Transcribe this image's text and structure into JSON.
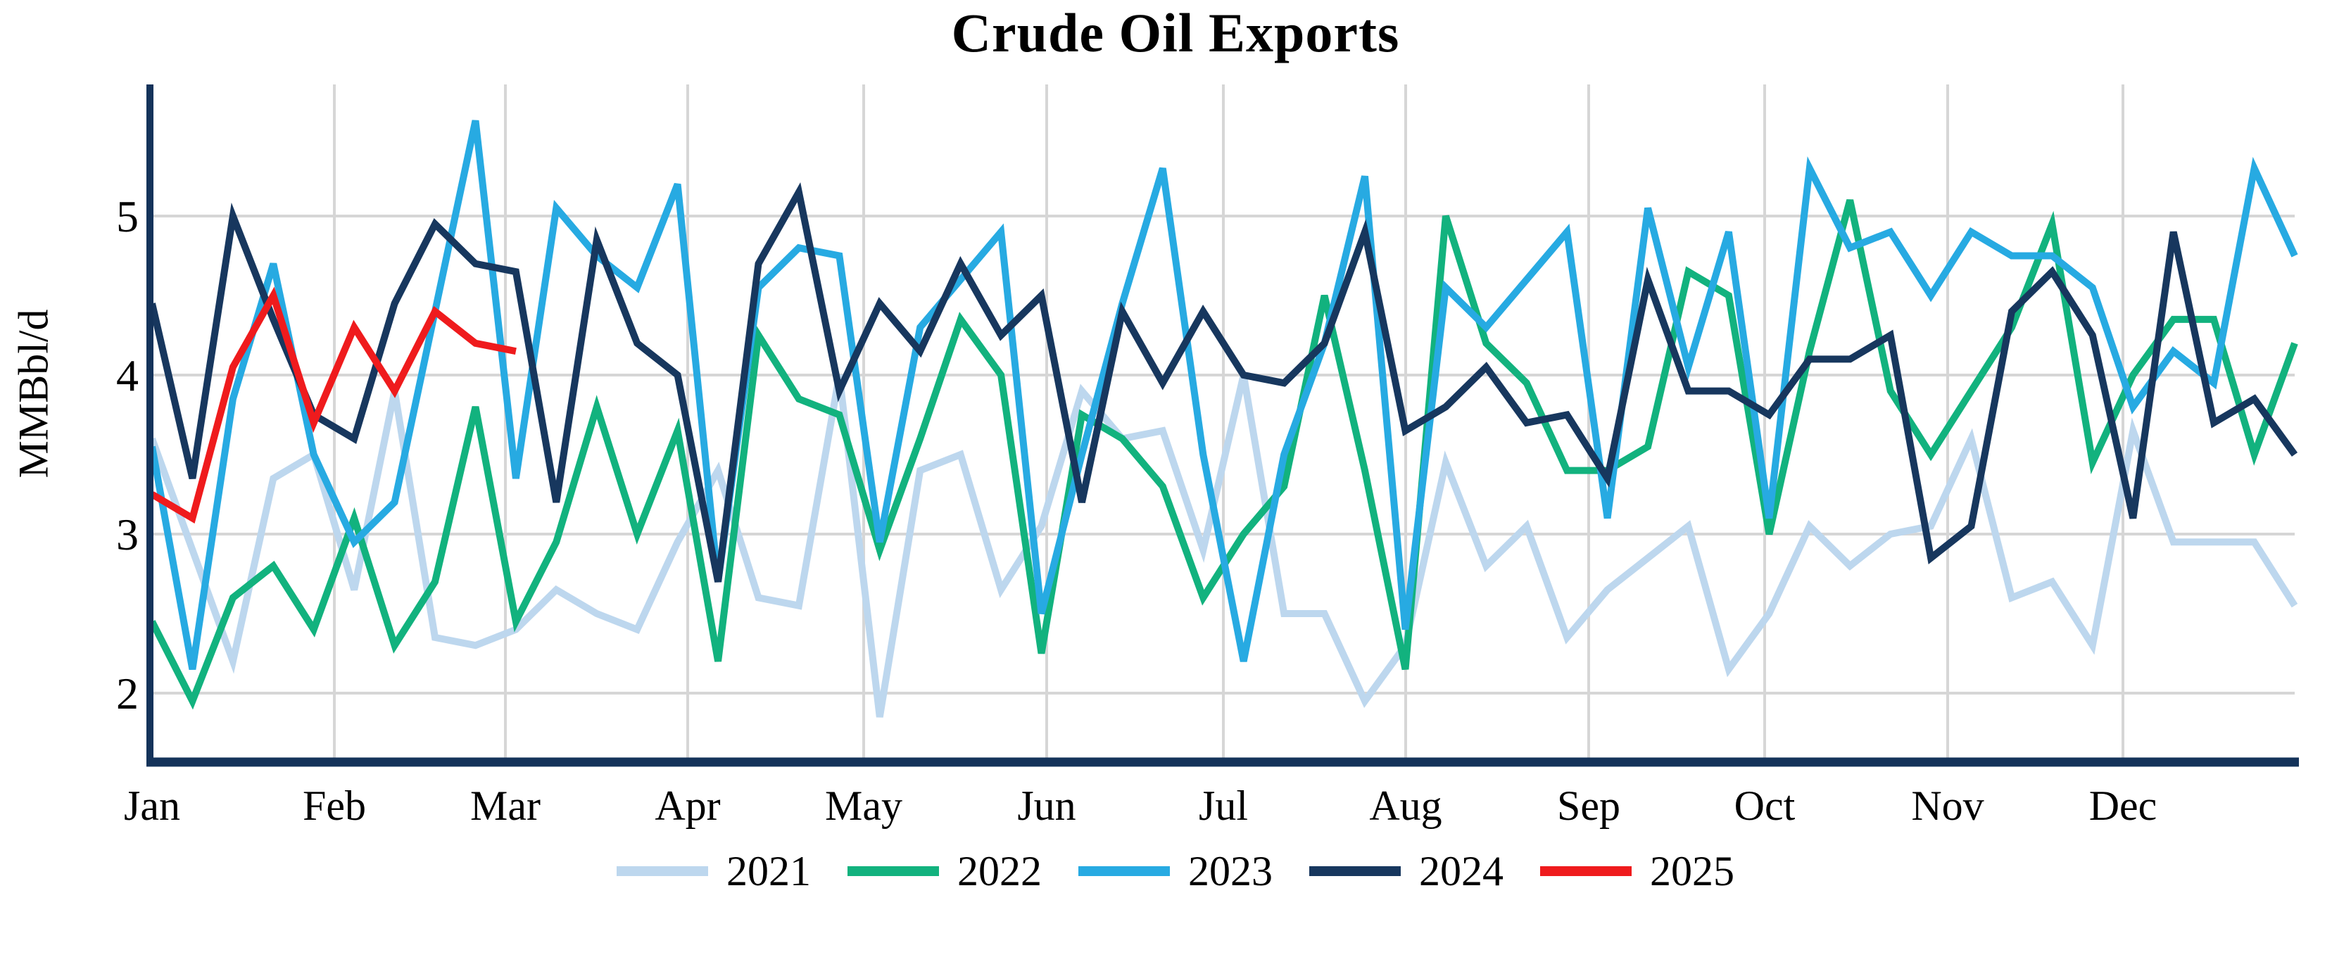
{
  "title": "Crude Oil Exports",
  "y_axis": {
    "label": "MMBbl/d",
    "tick_labels": [
      "2",
      "3",
      "4",
      "5"
    ]
  },
  "x_axis": {
    "month_labels": [
      "Jan",
      "Feb",
      "Mar",
      "Apr",
      "May",
      "Jun",
      "Jul",
      "Aug",
      "Sep",
      "Oct",
      "Nov",
      "Dec"
    ]
  },
  "colors": {
    "grid": "#D6D6D6",
    "axis": "#14335A",
    "text": "#000000"
  },
  "chart_data": {
    "type": "line",
    "title": "Crude Oil Exports",
    "ylabel": "MMBbl/d",
    "x_unit": "week_of_year",
    "ylim": [
      1.55,
      5.8
    ],
    "yticks": [
      2,
      3,
      4,
      5
    ],
    "months": [
      "Jan",
      "Feb",
      "Mar",
      "Apr",
      "May",
      "Jun",
      "Jul",
      "Aug",
      "Sep",
      "Oct",
      "Nov",
      "Dec"
    ],
    "grid": true,
    "legend_position": "bottom",
    "series": [
      {
        "name": "2021",
        "color": "#BDD7EE",
        "values": [
          3.6,
          2.9,
          2.2,
          3.35,
          3.5,
          2.65,
          3.9,
          2.35,
          2.3,
          2.4,
          2.65,
          2.5,
          2.4,
          2.95,
          3.4,
          2.6,
          2.55,
          4.0,
          1.85,
          3.4,
          3.5,
          2.65,
          3.05,
          3.9,
          3.6,
          3.65,
          2.9,
          4.0,
          2.5,
          2.5,
          1.95,
          2.3,
          3.45,
          2.8,
          3.05,
          2.35,
          2.65,
          2.85,
          3.05,
          2.15,
          2.5,
          3.05,
          2.8,
          3.0,
          3.05,
          3.6,
          2.6,
          2.7,
          2.3,
          3.65,
          2.95,
          2.95,
          2.95,
          2.55
        ]
      },
      {
        "name": "2022",
        "color": "#12B27E",
        "values": [
          2.45,
          1.95,
          2.6,
          2.8,
          2.4,
          3.1,
          2.3,
          2.7,
          3.8,
          2.45,
          2.95,
          3.8,
          3.0,
          3.65,
          2.2,
          4.25,
          3.85,
          3.75,
          2.9,
          3.6,
          4.35,
          4.0,
          2.25,
          3.75,
          3.6,
          3.3,
          2.6,
          3.0,
          3.3,
          4.5,
          3.4,
          2.15,
          5.0,
          4.2,
          3.95,
          3.4,
          3.4,
          3.55,
          4.65,
          4.5,
          3.0,
          4.15,
          5.1,
          3.9,
          3.5,
          3.9,
          4.3,
          4.95,
          3.45,
          4.0,
          4.35,
          4.35,
          3.5,
          4.2
        ]
      },
      {
        "name": "2023",
        "color": "#27AAE2",
        "values": [
          3.55,
          2.15,
          3.85,
          4.7,
          3.5,
          2.95,
          3.2,
          4.4,
          5.6,
          3.35,
          5.05,
          4.75,
          4.55,
          5.2,
          2.7,
          4.55,
          4.8,
          4.75,
          2.95,
          4.3,
          4.6,
          4.9,
          2.5,
          3.5,
          4.45,
          5.3,
          3.5,
          2.2,
          3.5,
          4.2,
          5.25,
          2.4,
          4.55,
          4.3,
          4.6,
          4.9,
          3.1,
          5.05,
          4.05,
          4.9,
          3.1,
          5.3,
          4.8,
          4.9,
          4.5,
          4.9,
          4.75,
          4.75,
          4.55,
          3.8,
          4.15,
          3.95,
          5.3,
          4.75
        ]
      },
      {
        "name": "2024",
        "color": "#17375E",
        "values": [
          4.45,
          3.35,
          5.0,
          4.35,
          3.75,
          3.6,
          4.45,
          4.95,
          4.7,
          4.65,
          3.2,
          4.85,
          4.2,
          4.0,
          2.7,
          4.7,
          5.15,
          3.9,
          4.45,
          4.15,
          4.7,
          4.25,
          4.5,
          3.2,
          4.4,
          3.95,
          4.4,
          4.0,
          3.95,
          4.2,
          4.9,
          3.65,
          3.8,
          4.05,
          3.7,
          3.75,
          3.35,
          4.6,
          3.9,
          3.9,
          3.75,
          4.1,
          4.1,
          4.25,
          2.85,
          3.05,
          4.4,
          4.65,
          4.25,
          3.1,
          4.9,
          3.7,
          3.85,
          3.5
        ]
      },
      {
        "name": "2025",
        "color": "#EF1B1D",
        "values": [
          3.25,
          3.1,
          4.05,
          4.5,
          3.7,
          4.3,
          3.9,
          4.4,
          4.2,
          4.15
        ]
      }
    ]
  }
}
